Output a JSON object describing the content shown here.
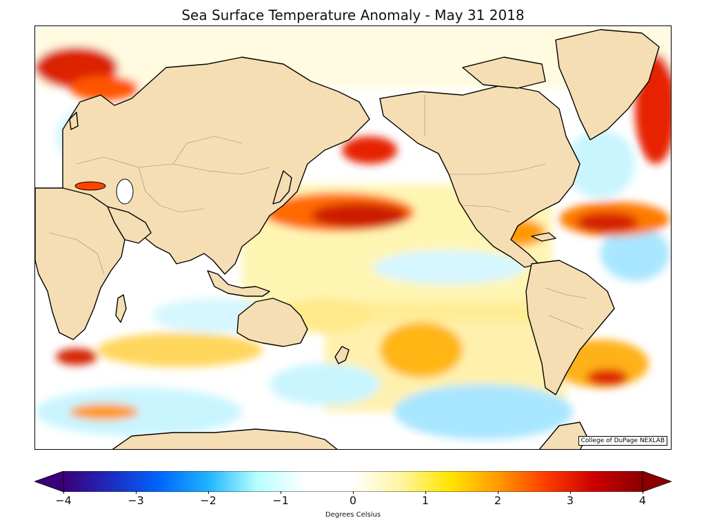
{
  "title": "Sea Surface Temperature Anomaly - May 31 2018",
  "credit": "College of DuPage NEXLAB",
  "colorbar": {
    "label": "Degrees Celsius",
    "range": [
      -4,
      4
    ],
    "ticks": [
      "−4",
      "−3",
      "−2",
      "−1",
      "0",
      "1",
      "2",
      "3",
      "4"
    ],
    "colors": [
      "#3a007a",
      "#1c2dbf",
      "#0066ff",
      "#1eb4ff",
      "#b4ffff",
      "#ffffff",
      "#ffffff",
      "#fff5a0",
      "#ffe600",
      "#ff9a00",
      "#ff3c00",
      "#cc0000",
      "#8a0000"
    ],
    "extend": "both"
  },
  "colors": {
    "land": "#f5deb3",
    "coastline": "#000000",
    "borders": "#8a8a8a"
  }
}
